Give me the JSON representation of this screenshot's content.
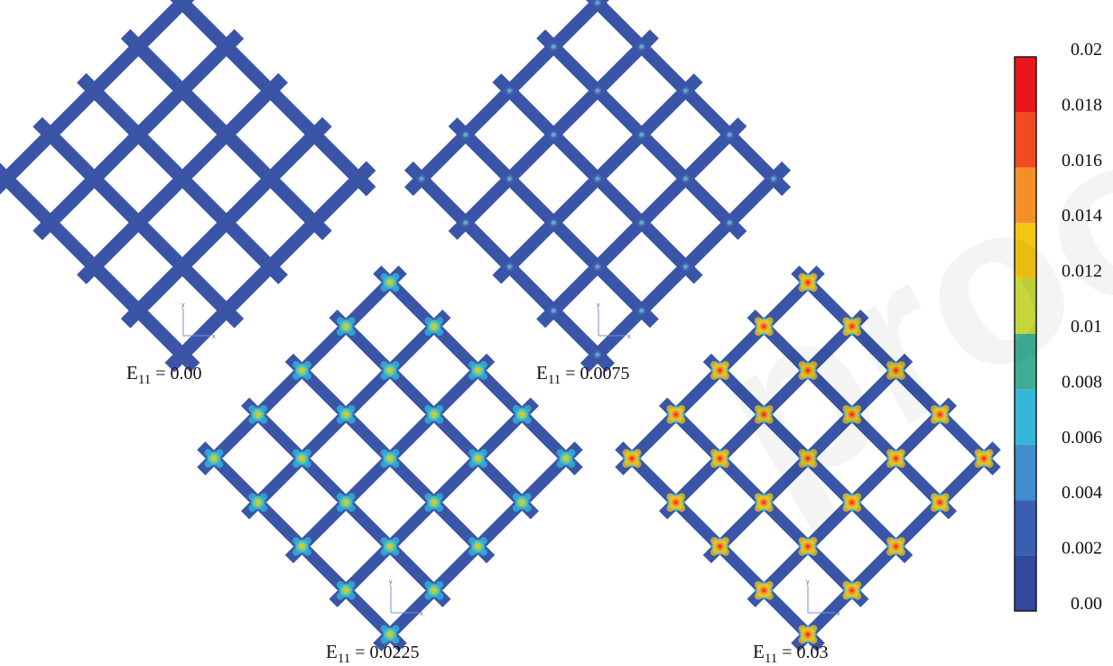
{
  "colors": {
    "lattice": "#3a55a8",
    "lattice_edge": "#2c4490",
    "background": "#ffffff"
  },
  "panels": [
    {
      "id": "panel-1",
      "caption_symbol": "E",
      "caption_sub": "11",
      "caption_rest": " =  0.00",
      "strain_level": 0.0
    },
    {
      "id": "panel-2",
      "caption_symbol": "E",
      "caption_sub": "11",
      "caption_rest": " =  0.0075",
      "strain_level": 0.0075
    },
    {
      "id": "panel-3",
      "caption_symbol": "E",
      "caption_sub": "11",
      "caption_rest": " =  0.0225",
      "strain_level": 0.0225
    },
    {
      "id": "panel-4",
      "caption_symbol": "E",
      "caption_sub": "11",
      "caption_rest": " =  0.03",
      "strain_level": 0.03
    }
  ],
  "axis_triad": {
    "x_label": "x",
    "y_label": "y"
  },
  "colorbar": {
    "labels": [
      "0.02",
      "0.018",
      "0.016",
      "0.014",
      "0.012",
      "0.01",
      "0.008",
      "0.006",
      "0.004",
      "0.002",
      "0.00"
    ],
    "colors": [
      "#e8161b",
      "#ef4a22",
      "#f3902a",
      "#f3c614",
      "#c5d73a",
      "#3fae95",
      "#36b7d8",
      "#3f8dcc",
      "#3a5fb2",
      "#33479d"
    ]
  },
  "watermark": "proofs"
}
